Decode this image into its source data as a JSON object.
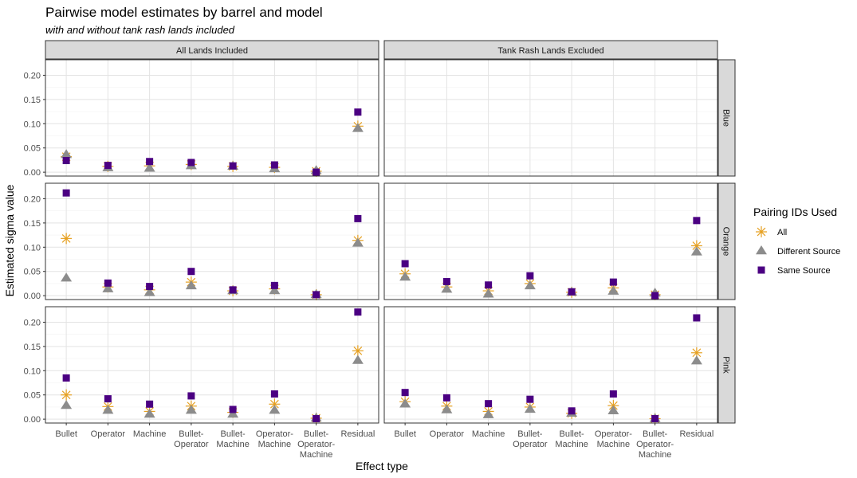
{
  "chart_data": {
    "type": "scatter",
    "title": "Pairwise model estimates by barrel and model",
    "subtitle": "with and without tank rash lands included",
    "xlabel": "Effect type",
    "ylabel": "Estimated sigma value",
    "categories": [
      [
        "Bullet"
      ],
      [
        "Operator"
      ],
      [
        "Machine"
      ],
      [
        "Bullet-",
        "Operator"
      ],
      [
        "Bullet-",
        "Machine"
      ],
      [
        "Operator-",
        "Machine"
      ],
      [
        "Bullet-",
        "Operator-",
        "Machine"
      ],
      [
        "Residual"
      ]
    ],
    "ylim": [
      -0.008,
      0.232
    ],
    "yticks": [
      0.0,
      0.05,
      0.1,
      0.15,
      0.2
    ],
    "ytick_labels": [
      "0.00",
      "0.05",
      "0.10",
      "0.15",
      "0.20"
    ],
    "grid": true,
    "facet_cols": [
      "All Lands Included",
      "Tank Rash Lands Excluded"
    ],
    "facet_rows": [
      "Blue",
      "Orange",
      "Pink"
    ],
    "legend": {
      "title": "Pairing IDs Used",
      "position": "right",
      "entries": [
        {
          "name": "All",
          "shape": "asterisk",
          "color": "#E6A020"
        },
        {
          "name": "Different Source",
          "shape": "triangle",
          "color": "#8C8C8C"
        },
        {
          "name": "Same Source",
          "shape": "square",
          "color": "#4B0082"
        }
      ]
    },
    "panels": [
      {
        "row": "Blue",
        "col": "All Lands Included",
        "all": [
          0.032,
          0.012,
          0.013,
          0.016,
          0.012,
          0.01,
          0.002,
          0.095
        ],
        "different": [
          0.036,
          0.009,
          0.008,
          0.013,
          0.012,
          0.007,
          0.003,
          0.09
        ],
        "same": [
          0.024,
          0.014,
          0.022,
          0.02,
          0.013,
          0.015,
          0.0,
          0.124
        ]
      },
      {
        "row": "Blue",
        "col": "Tank Rash Lands Excluded",
        "all": [],
        "different": [],
        "same": []
      },
      {
        "row": "Orange",
        "col": "All Lands Included",
        "all": [
          0.118,
          0.018,
          0.012,
          0.028,
          0.01,
          0.014,
          0.002,
          0.114
        ],
        "different": [
          0.036,
          0.014,
          0.006,
          0.02,
          0.01,
          0.01,
          0.002,
          0.108
        ],
        "same": [
          0.212,
          0.026,
          0.019,
          0.05,
          0.012,
          0.021,
          0.002,
          0.159
        ]
      },
      {
        "row": "Orange",
        "col": "Tank Rash Lands Excluded",
        "all": [
          0.045,
          0.018,
          0.01,
          0.025,
          0.007,
          0.016,
          0.002,
          0.103
        ],
        "different": [
          0.038,
          0.013,
          0.003,
          0.02,
          0.007,
          0.009,
          0.005,
          0.09
        ],
        "same": [
          0.066,
          0.029,
          0.022,
          0.041,
          0.008,
          0.028,
          0.0,
          0.155
        ]
      },
      {
        "row": "Pink",
        "col": "All Lands Included",
        "all": [
          0.05,
          0.026,
          0.016,
          0.027,
          0.014,
          0.031,
          0.002,
          0.141
        ],
        "different": [
          0.028,
          0.018,
          0.01,
          0.018,
          0.01,
          0.018,
          0.002,
          0.121
        ],
        "same": [
          0.085,
          0.042,
          0.031,
          0.048,
          0.02,
          0.052,
          0.001,
          0.221
        ]
      },
      {
        "row": "Pink",
        "col": "Tank Rash Lands Excluded",
        "all": [
          0.036,
          0.027,
          0.016,
          0.025,
          0.012,
          0.028,
          0.001,
          0.137
        ],
        "different": [
          0.031,
          0.019,
          0.009,
          0.02,
          0.012,
          0.017,
          0.001,
          0.12
        ],
        "same": [
          0.055,
          0.044,
          0.032,
          0.041,
          0.017,
          0.052,
          0.001,
          0.209
        ]
      }
    ]
  }
}
